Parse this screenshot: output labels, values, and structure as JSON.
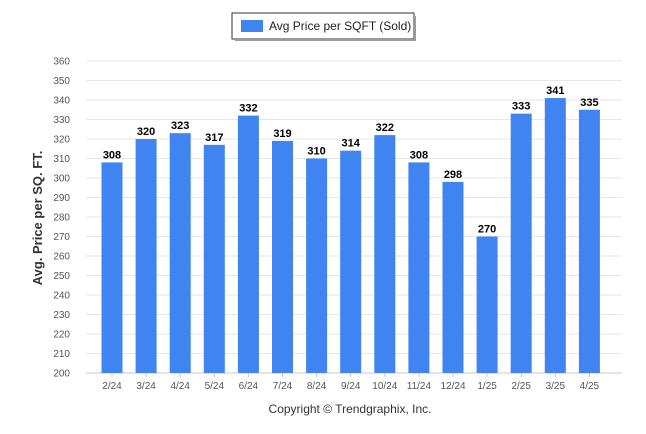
{
  "chart_data": {
    "type": "bar",
    "categories": [
      "2/24",
      "3/24",
      "4/24",
      "5/24",
      "6/24",
      "7/24",
      "8/24",
      "9/24",
      "10/24",
      "11/24",
      "12/24",
      "1/25",
      "2/25",
      "3/25",
      "4/25"
    ],
    "series": [
      {
        "name": "Avg Price per SQFT (Sold)",
        "values": [
          308,
          320,
          323,
          317,
          332,
          319,
          310,
          314,
          322,
          308,
          298,
          270,
          333,
          341,
          335
        ]
      }
    ],
    "ylabel": "Avg. Price per SQ. FT.",
    "xlabel": "",
    "ylim": [
      200,
      360
    ],
    "yticks": [
      200,
      210,
      220,
      230,
      240,
      250,
      260,
      270,
      280,
      290,
      300,
      310,
      320,
      330,
      340,
      350,
      360
    ],
    "grid": true,
    "legend_position": "top-center",
    "data_labels": true
  },
  "colors": {
    "bar": "#3f84f0",
    "legend_swatch": "#3f84f0"
  },
  "footer": {
    "copyright": "Copyright © Trendgraphix, Inc."
  }
}
